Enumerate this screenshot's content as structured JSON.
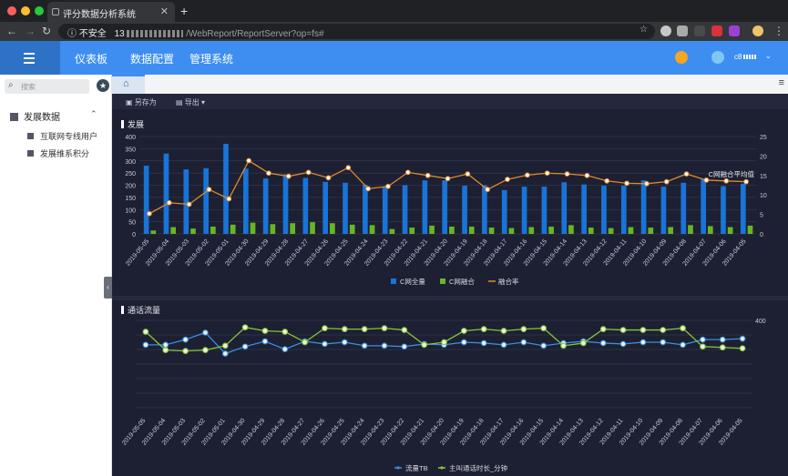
{
  "browser": {
    "tab_title": "评分数据分析系统",
    "new_tab": "+",
    "security_label": "不安全",
    "url_prefix": "13",
    "url_path": "/WebReport/ReportServer?op=fs#"
  },
  "app": {
    "nav": [
      "仪表板",
      "数据配置",
      "管理系统"
    ],
    "user_label": "c8",
    "colors": {
      "header": "#3d8ef0",
      "header_dark": "#2e72c8",
      "panel": "#1d2032"
    }
  },
  "sidebar": {
    "search_placeholder": "搜索",
    "group": "发展数据",
    "items": [
      "互联网专线用户",
      "发展维系积分"
    ]
  },
  "toolbar": {
    "save_as": "另存为",
    "export": "导出"
  },
  "chart_data": [
    {
      "type": "bar",
      "title": "发展",
      "categories": [
        "2019-05-05",
        "2019-05-04",
        "2019-05-03",
        "2019-05-02",
        "2019-05-01",
        "2019-04-30",
        "2019-04-29",
        "2019-04-28",
        "2019-04-27",
        "2019-04-26",
        "2019-04-25",
        "2019-04-24",
        "2019-04-23",
        "2019-04-22",
        "2019-04-21",
        "2019-04-20",
        "2019-04-19",
        "2019-04-18",
        "2019-04-17",
        "2019-04-16",
        "2019-04-15",
        "2019-04-14",
        "2019-04-13",
        "2019-04-12",
        "2019-04-11",
        "2019-04-10",
        "2019-04-09",
        "2019-04-08",
        "2019-04-07",
        "2019-04-06",
        "2019-04-05"
      ],
      "x_tick_labels": [
        "2019-05-05",
        "2019-05-04",
        "2019-05-03",
        "2019-05-02",
        "2019-05-01",
        "2019-04-30",
        "2019-04-29",
        "2019-04-28",
        "2019-04-27",
        "2019-04-26",
        "2019-04-25",
        "2019-04-24",
        "2019-04-23",
        "2019-04-22",
        "2019-04-21",
        "2019-04-20",
        "2019-04-19",
        "2019-04-18",
        "2019-04-17",
        "2019-04-16",
        "2019-04-15",
        "2019-04-14",
        "2019-04-13",
        "2019-04-12",
        "2019-04-11",
        "2019-04-10",
        "2019-04-09",
        "2019-04-08",
        "2019-04-07",
        "2019-04-06",
        "2019-04-05"
      ],
      "y_ticks_left": [
        "400",
        "350",
        "300",
        "250",
        "200",
        "150",
        "100",
        "50",
        "0"
      ],
      "y_ticks_right": [
        "25",
        "20",
        "15",
        "10",
        "5",
        "0"
      ],
      "ylim": [
        0,
        400
      ],
      "ylim_right": [
        0,
        25
      ],
      "series": [
        {
          "name": "C网全量",
          "type": "bar",
          "color": "#1874d8",
          "values": [
            280,
            330,
            265,
            270,
            370,
            268,
            228,
            245,
            230,
            214,
            210,
            202,
            192,
            200,
            220,
            220,
            198,
            200,
            180,
            194,
            194,
            212,
            203,
            198,
            198,
            220,
            194,
            210,
            224,
            196,
            206
          ]
        },
        {
          "name": "C网融合",
          "type": "bar",
          "color": "#6ab523",
          "values": [
            14,
            28,
            22,
            30,
            38,
            46,
            40,
            44,
            48,
            44,
            38,
            36,
            20,
            26,
            34,
            30,
            30,
            26,
            24,
            28,
            30,
            36,
            26,
            24,
            28,
            26,
            28,
            36,
            32,
            28,
            34
          ]
        },
        {
          "name": "融合率",
          "type": "line",
          "axis": "right",
          "color": "#e08a2c",
          "values": [
            5.2,
            8.0,
            7.6,
            11.4,
            9.0,
            18.8,
            15.6,
            14.8,
            15.8,
            14.4,
            17.0,
            11.6,
            12.2,
            15.8,
            15.0,
            14.2,
            15.4,
            11.4,
            14.0,
            15.1,
            15.6,
            15.4,
            15.0,
            13.6,
            13.0,
            12.9,
            13.4,
            15.4,
            13.8,
            13.6,
            13.4
          ]
        }
      ],
      "annotation": "C网融合平均值",
      "legend": "bottom"
    },
    {
      "type": "line",
      "title": "通话流量",
      "categories": [
        "2019-05-05",
        "2019-05-04",
        "2019-05-03",
        "2019-05-02",
        "2019-05-01",
        "2019-04-30",
        "2019-04-29",
        "2019-04-28",
        "2019-04-27",
        "2019-04-26",
        "2019-04-25",
        "2019-04-24",
        "2019-04-23",
        "2019-04-22",
        "2019-04-21",
        "2019-04-20",
        "2019-04-19",
        "2019-04-18",
        "2019-04-17",
        "2019-04-16",
        "2019-04-15",
        "2019-04-14",
        "2019-04-13",
        "2019-04-12",
        "2019-04-11",
        "2019-04-10",
        "2019-04-09",
        "2019-04-08",
        "2019-04-07",
        "2019-04-06",
        "2019-04-05"
      ],
      "x_tick_labels": [
        "2019-05-05",
        "2019-05-04",
        "2019-05-03",
        "2019-05-02",
        "2019-05-01",
        "2019-04-30",
        "2019-04-29",
        "2019-04-28",
        "2019-04-27",
        "2019-04-26",
        "2019-04-25",
        "2019-04-24",
        "2019-04-23",
        "2019-04-22",
        "2019-04-21",
        "2019-04-20",
        "2019-04-19",
        "2019-04-18",
        "2019-04-17",
        "2019-04-16",
        "2019-04-15",
        "2019-04-14",
        "2019-04-13",
        "2019-04-12",
        "2019-04-11",
        "2019-04-10",
        "2019-04-09",
        "2019-04-08",
        "2019-04-07",
        "2019-04-06",
        "2019-04-05"
      ],
      "y_ticks_right": [
        "400"
      ],
      "ylim": [
        0,
        100
      ],
      "series": [
        {
          "name": "流量TB",
          "color": "#3a8ee6",
          "values": [
            72,
            72,
            78,
            86,
            62,
            70,
            76,
            67,
            76,
            73,
            75,
            71,
            71,
            70,
            73,
            72,
            75,
            74,
            72,
            75,
            71,
            74,
            76,
            74,
            73,
            75,
            75,
            72,
            78,
            78,
            79
          ]
        },
        {
          "name": "主叫通话时长_分钟",
          "color": "#86c53a",
          "values": [
            87,
            66,
            65,
            66,
            71,
            92,
            88,
            87,
            75,
            91,
            90,
            90,
            91,
            89,
            72,
            75,
            88,
            90,
            88,
            90,
            91,
            71,
            74,
            90,
            89,
            89,
            89,
            91,
            70,
            69,
            68
          ]
        }
      ],
      "legend": "bottom"
    }
  ]
}
